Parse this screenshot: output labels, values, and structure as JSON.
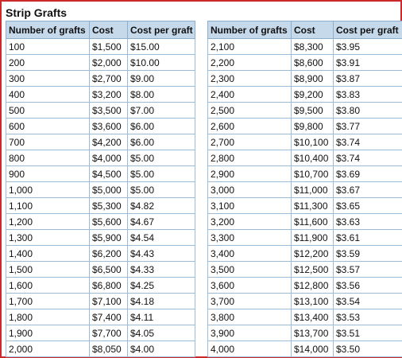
{
  "title": "Strip Grafts",
  "columns": [
    "Number of grafts",
    "Cost",
    "Cost per graft"
  ],
  "left_rows": [
    [
      "100",
      "$1,500",
      "$15.00"
    ],
    [
      "200",
      "$2,000",
      "$10.00"
    ],
    [
      "300",
      "$2,700",
      "$9.00"
    ],
    [
      "400",
      "$3,200",
      "$8.00"
    ],
    [
      "500",
      "$3,500",
      "$7.00"
    ],
    [
      "600",
      "$3,600",
      "$6.00"
    ],
    [
      "700",
      "$4,200",
      "$6.00"
    ],
    [
      "800",
      "$4,000",
      "$5.00"
    ],
    [
      "900",
      "$4,500",
      "$5.00"
    ],
    [
      "1,000",
      "$5,000",
      "$5.00"
    ],
    [
      "1,100",
      "$5,300",
      "$4.82"
    ],
    [
      "1,200",
      "$5,600",
      "$4.67"
    ],
    [
      "1,300",
      "$5,900",
      "$4.54"
    ],
    [
      "1,400",
      "$6,200",
      "$4.43"
    ],
    [
      "1,500",
      "$6,500",
      "$4.33"
    ],
    [
      "1,600",
      "$6,800",
      "$4.25"
    ],
    [
      "1,700",
      "$7,100",
      "$4.18"
    ],
    [
      "1,800",
      "$7,400",
      "$4.11"
    ],
    [
      "1,900",
      "$7,700",
      "$4.05"
    ],
    [
      "2,000",
      "$8,050",
      "$4.00"
    ]
  ],
  "right_rows": [
    [
      "2,100",
      "$8,300",
      "$3.95"
    ],
    [
      "2,200",
      "$8,600",
      "$3.91"
    ],
    [
      "2,300",
      "$8,900",
      "$3.87"
    ],
    [
      "2,400",
      "$9,200",
      "$3.83"
    ],
    [
      "2,500",
      "$9,500",
      "$3.80"
    ],
    [
      "2,600",
      "$9,800",
      "$3.77"
    ],
    [
      "2,700",
      "$10,100",
      "$3.74"
    ],
    [
      "2,800",
      "$10,400",
      "$3.74"
    ],
    [
      "2,900",
      "$10,700",
      "$3.69"
    ],
    [
      "3,000",
      "$11,000",
      "$3.67"
    ],
    [
      "3,100",
      "$11,300",
      "$3.65"
    ],
    [
      "3,200",
      "$11,600",
      "$3.63"
    ],
    [
      "3,300",
      "$11,900",
      "$3.61"
    ],
    [
      "3,400",
      "$12,200",
      "$3.59"
    ],
    [
      "3,500",
      "$12,500",
      "$3.57"
    ],
    [
      "3,600",
      "$12,800",
      "$3.56"
    ],
    [
      "3,700",
      "$13,100",
      "$3.54"
    ],
    [
      "3,800",
      "$13,400",
      "$3.53"
    ],
    [
      "3,900",
      "$13,700",
      "$3.51"
    ],
    [
      "4,000",
      "$14,000",
      "$3.50"
    ]
  ],
  "colors": {
    "frame_border": "#cc2a2a",
    "header_bg": "#c6d9ea",
    "cell_border": "#9bbbd8"
  }
}
